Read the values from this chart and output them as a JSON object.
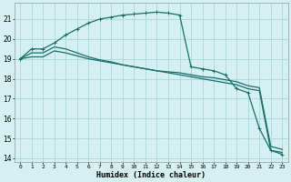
{
  "xlabel": "Humidex (Indice chaleur)",
  "bg_color": "#d4f0f0",
  "grid_color": "#aad8d8",
  "line_color": "#1a6e6a",
  "xlim": [
    -0.5,
    23.5
  ],
  "ylim": [
    13.8,
    21.8
  ],
  "yticks": [
    14,
    15,
    16,
    17,
    18,
    19,
    20,
    21
  ],
  "xticks": [
    0,
    1,
    2,
    3,
    4,
    5,
    6,
    7,
    8,
    9,
    10,
    11,
    12,
    13,
    14,
    15,
    16,
    17,
    18,
    19,
    20,
    21,
    22,
    23
  ],
  "series": [
    {
      "x": [
        0,
        1,
        2,
        3,
        4,
        5,
        6,
        7,
        8,
        9,
        10,
        11,
        12,
        13,
        14,
        15,
        16,
        17,
        18,
        19,
        20,
        21,
        22,
        23
      ],
      "y": [
        19.0,
        19.5,
        19.5,
        19.8,
        20.2,
        20.5,
        20.8,
        21.0,
        21.1,
        21.2,
        21.25,
        21.3,
        21.35,
        21.3,
        21.2,
        18.6,
        18.5,
        18.4,
        18.2,
        17.5,
        17.3,
        15.5,
        14.4,
        14.2
      ],
      "marker": true
    },
    {
      "x": [
        0,
        1,
        2,
        3,
        4,
        5,
        6,
        7,
        8,
        9,
        10,
        11,
        12,
        13,
        14,
        15,
        16,
        17,
        18,
        19,
        20,
        21,
        22,
        23
      ],
      "y": [
        19.0,
        19.3,
        19.3,
        19.6,
        19.5,
        19.3,
        19.1,
        18.95,
        18.85,
        18.7,
        18.6,
        18.5,
        18.4,
        18.3,
        18.2,
        18.1,
        18.0,
        17.9,
        17.8,
        17.7,
        17.5,
        17.4,
        14.4,
        14.3
      ],
      "marker": false
    },
    {
      "x": [
        0,
        1,
        2,
        3,
        4,
        5,
        6,
        7,
        8,
        9,
        10,
        11,
        12,
        13,
        14,
        15,
        16,
        17,
        18,
        19,
        20,
        21,
        22,
        23
      ],
      "y": [
        19.0,
        19.1,
        19.1,
        19.4,
        19.3,
        19.15,
        19.0,
        18.9,
        18.8,
        18.7,
        18.6,
        18.5,
        18.4,
        18.35,
        18.3,
        18.2,
        18.1,
        18.05,
        17.95,
        17.85,
        17.65,
        17.55,
        14.6,
        14.45
      ],
      "marker": false
    }
  ]
}
